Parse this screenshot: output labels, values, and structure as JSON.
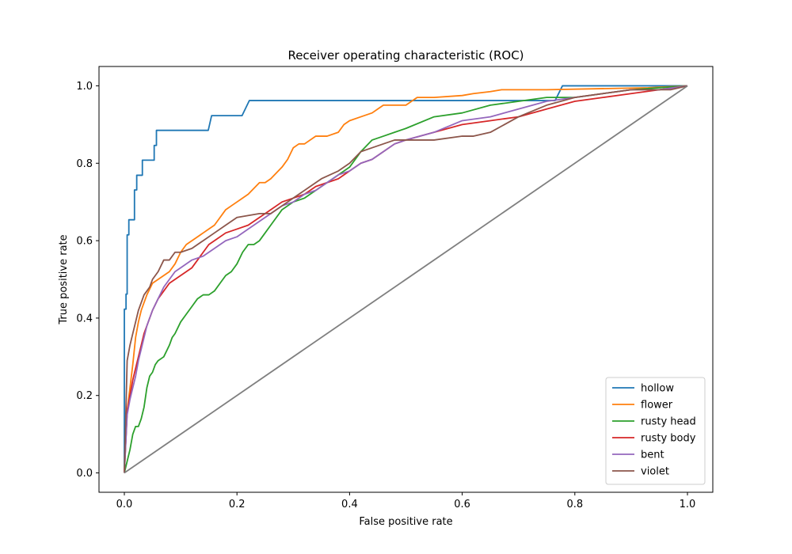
{
  "chart_data": {
    "type": "line",
    "title": "Receiver operating characteristic (ROC)",
    "xlabel": "False positive rate",
    "ylabel": "True positive rate",
    "xlim": [
      -0.045,
      1.045
    ],
    "ylim": [
      -0.05,
      1.05
    ],
    "xticks": [
      0.0,
      0.2,
      0.4,
      0.6,
      0.8,
      1.0
    ],
    "yticks": [
      0.0,
      0.2,
      0.4,
      0.6,
      0.8,
      1.0
    ],
    "xtick_labels": [
      "0.0",
      "0.2",
      "0.4",
      "0.6",
      "0.8",
      "1.0"
    ],
    "ytick_labels": [
      "0.0",
      "0.2",
      "0.4",
      "0.6",
      "0.8",
      "1.0"
    ],
    "grid": false,
    "legend_position": "lower-right",
    "series": [
      {
        "name": "hollow",
        "color": "#1f77b4",
        "x": [
          0,
          0,
          0.003,
          0.003,
          0.005,
          0.005,
          0.008,
          0.008,
          0.018,
          0.018,
          0.022,
          0.022,
          0.032,
          0.032,
          0.053,
          0.053,
          0.057,
          0.057,
          0.149,
          0.155,
          0.155,
          0.209,
          0.222,
          0.222,
          0.765,
          0.778,
          0.778,
          1.0
        ],
        "y": [
          0,
          0.423,
          0.423,
          0.462,
          0.462,
          0.615,
          0.615,
          0.654,
          0.654,
          0.731,
          0.731,
          0.769,
          0.769,
          0.808,
          0.808,
          0.846,
          0.846,
          0.885,
          0.885,
          0.923,
          0.923,
          0.923,
          0.962,
          0.962,
          0.962,
          1.0,
          1.0,
          1.0
        ]
      },
      {
        "name": "flower",
        "color": "#ff7f0e",
        "x": [
          0,
          0.005,
          0.01,
          0.015,
          0.02,
          0.025,
          0.03,
          0.035,
          0.04,
          0.05,
          0.06,
          0.07,
          0.08,
          0.09,
          0.1,
          0.11,
          0.12,
          0.13,
          0.14,
          0.15,
          0.16,
          0.17,
          0.18,
          0.19,
          0.2,
          0.22,
          0.24,
          0.25,
          0.26,
          0.28,
          0.29,
          0.3,
          0.31,
          0.32,
          0.34,
          0.36,
          0.38,
          0.39,
          0.4,
          0.42,
          0.44,
          0.45,
          0.46,
          0.48,
          0.5,
          0.51,
          0.52,
          0.55,
          0.6,
          0.62,
          0.65,
          0.67,
          0.75,
          0.93,
          1.0
        ],
        "y": [
          0,
          0.16,
          0.22,
          0.28,
          0.35,
          0.39,
          0.42,
          0.44,
          0.46,
          0.49,
          0.5,
          0.51,
          0.52,
          0.54,
          0.57,
          0.59,
          0.6,
          0.61,
          0.62,
          0.63,
          0.64,
          0.66,
          0.68,
          0.69,
          0.7,
          0.72,
          0.75,
          0.75,
          0.76,
          0.79,
          0.81,
          0.84,
          0.85,
          0.85,
          0.87,
          0.87,
          0.88,
          0.9,
          0.91,
          0.92,
          0.93,
          0.94,
          0.95,
          0.95,
          0.95,
          0.96,
          0.97,
          0.97,
          0.975,
          0.98,
          0.985,
          0.99,
          0.99,
          0.995,
          1.0
        ]
      },
      {
        "name": "rusty head",
        "color": "#2ca02c",
        "x": [
          0,
          0.005,
          0.01,
          0.015,
          0.02,
          0.025,
          0.03,
          0.035,
          0.04,
          0.045,
          0.05,
          0.055,
          0.06,
          0.07,
          0.08,
          0.085,
          0.09,
          0.1,
          0.11,
          0.12,
          0.13,
          0.14,
          0.15,
          0.16,
          0.17,
          0.18,
          0.19,
          0.2,
          0.21,
          0.22,
          0.23,
          0.24,
          0.25,
          0.26,
          0.27,
          0.28,
          0.29,
          0.3,
          0.32,
          0.34,
          0.36,
          0.38,
          0.4,
          0.42,
          0.44,
          0.46,
          0.48,
          0.5,
          0.55,
          0.6,
          0.65,
          0.7,
          0.75,
          0.8,
          0.85,
          0.9,
          1.0
        ],
        "y": [
          0,
          0.03,
          0.06,
          0.1,
          0.12,
          0.12,
          0.14,
          0.17,
          0.22,
          0.25,
          0.26,
          0.28,
          0.29,
          0.3,
          0.33,
          0.35,
          0.36,
          0.39,
          0.41,
          0.43,
          0.45,
          0.46,
          0.46,
          0.47,
          0.49,
          0.51,
          0.52,
          0.54,
          0.57,
          0.59,
          0.59,
          0.6,
          0.62,
          0.64,
          0.66,
          0.68,
          0.69,
          0.7,
          0.71,
          0.73,
          0.75,
          0.77,
          0.79,
          0.83,
          0.86,
          0.87,
          0.88,
          0.89,
          0.92,
          0.93,
          0.95,
          0.96,
          0.97,
          0.97,
          0.98,
          0.99,
          1.0
        ]
      },
      {
        "name": "rusty body",
        "color": "#d62728",
        "x": [
          0,
          0.005,
          0.01,
          0.015,
          0.02,
          0.025,
          0.03,
          0.035,
          0.04,
          0.045,
          0.05,
          0.06,
          0.07,
          0.08,
          0.09,
          0.1,
          0.11,
          0.12,
          0.13,
          0.14,
          0.15,
          0.16,
          0.18,
          0.2,
          0.22,
          0.24,
          0.26,
          0.28,
          0.3,
          0.32,
          0.34,
          0.36,
          0.38,
          0.4,
          0.42,
          0.44,
          0.46,
          0.48,
          0.5,
          0.55,
          0.6,
          0.65,
          0.7,
          0.75,
          0.8,
          0.85,
          0.9,
          0.95,
          1.0
        ],
        "y": [
          0,
          0.16,
          0.2,
          0.24,
          0.27,
          0.3,
          0.33,
          0.36,
          0.38,
          0.4,
          0.42,
          0.45,
          0.47,
          0.49,
          0.5,
          0.51,
          0.52,
          0.53,
          0.55,
          0.57,
          0.59,
          0.6,
          0.62,
          0.63,
          0.64,
          0.66,
          0.68,
          0.7,
          0.71,
          0.72,
          0.74,
          0.75,
          0.76,
          0.78,
          0.8,
          0.81,
          0.83,
          0.85,
          0.86,
          0.88,
          0.9,
          0.91,
          0.92,
          0.94,
          0.96,
          0.97,
          0.98,
          0.99,
          1.0
        ]
      },
      {
        "name": "bent",
        "color": "#9467bd",
        "x": [
          0,
          0.005,
          0.01,
          0.015,
          0.02,
          0.025,
          0.03,
          0.035,
          0.04,
          0.05,
          0.06,
          0.07,
          0.08,
          0.09,
          0.1,
          0.12,
          0.14,
          0.16,
          0.18,
          0.2,
          0.22,
          0.24,
          0.26,
          0.28,
          0.3,
          0.32,
          0.34,
          0.36,
          0.38,
          0.4,
          0.42,
          0.44,
          0.46,
          0.48,
          0.5,
          0.55,
          0.6,
          0.65,
          0.7,
          0.75,
          0.8,
          0.85,
          0.9,
          0.95,
          1.0
        ],
        "y": [
          0,
          0.15,
          0.19,
          0.22,
          0.25,
          0.29,
          0.32,
          0.35,
          0.38,
          0.42,
          0.45,
          0.48,
          0.5,
          0.52,
          0.53,
          0.55,
          0.56,
          0.58,
          0.6,
          0.61,
          0.63,
          0.65,
          0.67,
          0.69,
          0.7,
          0.72,
          0.73,
          0.75,
          0.77,
          0.78,
          0.8,
          0.81,
          0.83,
          0.85,
          0.86,
          0.88,
          0.91,
          0.92,
          0.94,
          0.96,
          0.97,
          0.98,
          0.99,
          0.99,
          1.0
        ]
      },
      {
        "name": "violet",
        "color": "#8c564b",
        "x": [
          0,
          0.005,
          0.01,
          0.015,
          0.02,
          0.025,
          0.03,
          0.035,
          0.04,
          0.045,
          0.05,
          0.06,
          0.07,
          0.08,
          0.09,
          0.1,
          0.12,
          0.14,
          0.16,
          0.18,
          0.2,
          0.24,
          0.26,
          0.28,
          0.3,
          0.33,
          0.35,
          0.38,
          0.4,
          0.42,
          0.44,
          0.46,
          0.48,
          0.5,
          0.55,
          0.6,
          0.62,
          0.65,
          0.7,
          0.75,
          0.8,
          0.85,
          0.9,
          0.95,
          0.97,
          1.0
        ],
        "y": [
          0,
          0.29,
          0.33,
          0.36,
          0.39,
          0.42,
          0.44,
          0.46,
          0.47,
          0.48,
          0.5,
          0.52,
          0.55,
          0.55,
          0.57,
          0.57,
          0.58,
          0.6,
          0.62,
          0.64,
          0.66,
          0.67,
          0.67,
          0.69,
          0.71,
          0.74,
          0.76,
          0.78,
          0.8,
          0.83,
          0.84,
          0.85,
          0.86,
          0.86,
          0.86,
          0.87,
          0.87,
          0.88,
          0.92,
          0.95,
          0.97,
          0.98,
          0.99,
          0.99,
          0.99,
          1.0
        ]
      },
      {
        "name": "",
        "color": "#7f7f7f",
        "x": [
          0,
          1
        ],
        "y": [
          0,
          1
        ]
      }
    ]
  }
}
